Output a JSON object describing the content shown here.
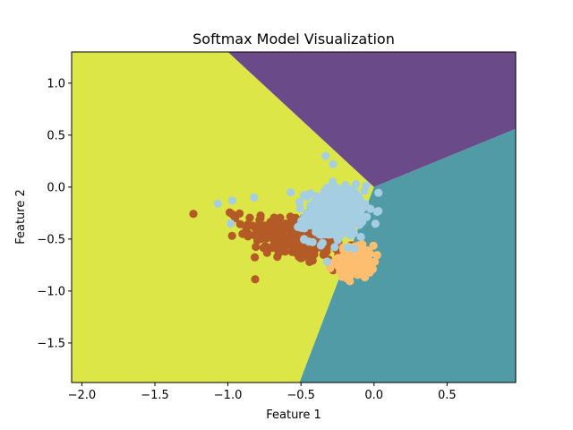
{
  "chart_data": {
    "type": "scatter",
    "title": "Softmax Model Visualization",
    "xlabel": "Feature 1",
    "ylabel": "Feature 2",
    "xlim": [
      -2.07,
      0.97
    ],
    "ylim": [
      -1.88,
      1.3
    ],
    "xticks": [
      -2.0,
      -1.5,
      -1.0,
      -0.5,
      0.0,
      0.5
    ],
    "yticks": [
      -1.5,
      -1.0,
      -0.5,
      0.0,
      0.5,
      1.0
    ],
    "xtick_labels": [
      "−2.0",
      "−1.5",
      "−1.0",
      "−0.5",
      "0.0",
      "0.5"
    ],
    "ytick_labels": [
      "−1.5",
      "−1.0",
      "−0.5",
      "0.0",
      "0.5",
      "1.0"
    ],
    "grid": false,
    "decision_regions": [
      {
        "color": "#dce646",
        "polygon": [
          [
            -2.07,
            1.3
          ],
          [
            -1.0,
            1.3
          ],
          [
            0.0,
            0.0
          ],
          [
            -0.51,
            -1.88
          ],
          [
            -2.07,
            -1.88
          ]
        ]
      },
      {
        "color": "#6b4a8a",
        "polygon": [
          [
            -1.0,
            1.3
          ],
          [
            0.97,
            1.3
          ],
          [
            0.97,
            0.56
          ],
          [
            0.0,
            0.0
          ]
        ]
      },
      {
        "color": "#509ba5",
        "polygon": [
          [
            0.0,
            0.0
          ],
          [
            0.97,
            0.56
          ],
          [
            0.97,
            -1.88
          ],
          [
            -0.51,
            -1.88
          ]
        ]
      }
    ],
    "series": [
      {
        "color": "#b35a27",
        "center": [
          -0.55,
          -0.48
        ],
        "spread": [
          0.17,
          0.12
        ],
        "correlation": -0.35,
        "count": 260,
        "extra_points": [
          [
            -0.95,
            -0.3
          ],
          [
            -0.9,
            -0.45
          ],
          [
            -0.28,
            -0.8
          ]
        ]
      },
      {
        "color": "#fdbf6f",
        "center": [
          -0.12,
          -0.72
        ],
        "spread": [
          0.06,
          0.08
        ],
        "correlation": 0.0,
        "count": 120,
        "extra_points": [
          [
            -0.3,
            -0.78
          ],
          [
            -0.08,
            -0.55
          ]
        ]
      },
      {
        "color": "#a6cee3",
        "center": [
          -0.27,
          -0.25
        ],
        "spread": [
          0.1,
          0.12
        ],
        "correlation": 0.1,
        "count": 380,
        "extra_points": [
          [
            -1.07,
            -0.16
          ],
          [
            -0.97,
            -0.13
          ],
          [
            -0.82,
            -0.1
          ],
          [
            -0.57,
            -0.05
          ],
          [
            -0.33,
            0.3
          ],
          [
            -0.28,
            0.22
          ],
          [
            -0.42,
            -0.53
          ],
          [
            -0.98,
            -0.35
          ]
        ]
      }
    ]
  }
}
